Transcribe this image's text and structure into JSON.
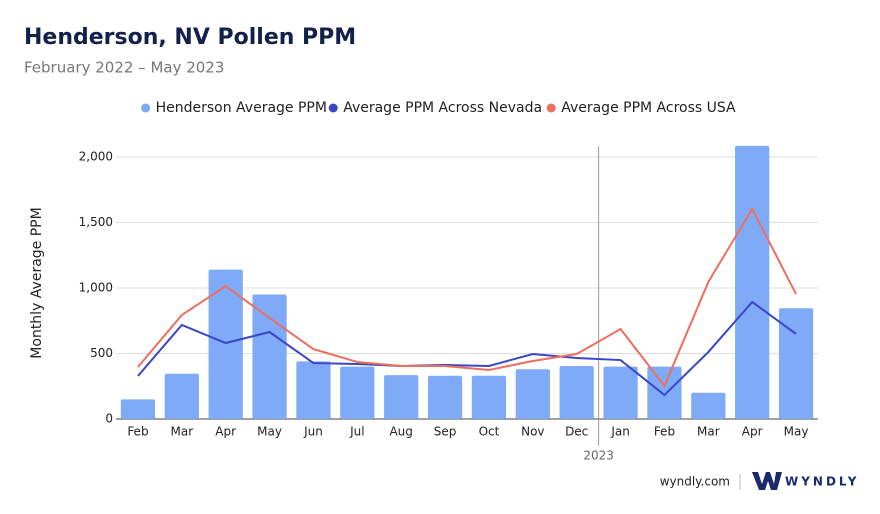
{
  "chart_data": {
    "type": "bar_line",
    "title": "Henderson, NV Pollen PPM",
    "subtitle": "February 2022 – May 2023",
    "y_label": "Monthly Average PPM",
    "year_marker": "2023",
    "categories": [
      "Feb",
      "Mar",
      "Apr",
      "May",
      "Jun",
      "Jul",
      "Aug",
      "Sep",
      "Oct",
      "Nov",
      "Dec",
      "Jan",
      "Feb",
      "Mar",
      "Apr",
      "May"
    ],
    "series": [
      {
        "name": "Henderson Average PPM",
        "kind": "bar",
        "color": "#7eaaf7",
        "values": [
          150,
          345,
          1140,
          950,
          440,
          400,
          335,
          330,
          330,
          380,
          405,
          400,
          400,
          200,
          2085,
          845
        ]
      },
      {
        "name": "Average PPM Across Nevada",
        "kind": "line",
        "color": "#3b45c7",
        "values": [
          328,
          718,
          580,
          664,
          427,
          420,
          405,
          412,
          405,
          496,
          466,
          450,
          183,
          511,
          893,
          649
        ]
      },
      {
        "name": "Average PPM Across USA",
        "kind": "line",
        "color": "#ee6e5e",
        "values": [
          397,
          794,
          1015,
          771,
          534,
          435,
          405,
          405,
          374,
          443,
          496,
          687,
          252,
          1046,
          1603,
          954
        ]
      }
    ],
    "ylim": [
      0,
      2000
    ],
    "yticks": [
      0,
      500,
      {
        "value": 1000,
        "label": "1,000"
      },
      {
        "value": 1500,
        "label": "1,500"
      },
      {
        "value": 2000,
        "label": "2,000"
      }
    ],
    "grid": true,
    "legend": "top",
    "footer": {
      "site": "wyndly.com",
      "brand": "WYNDLY"
    }
  }
}
